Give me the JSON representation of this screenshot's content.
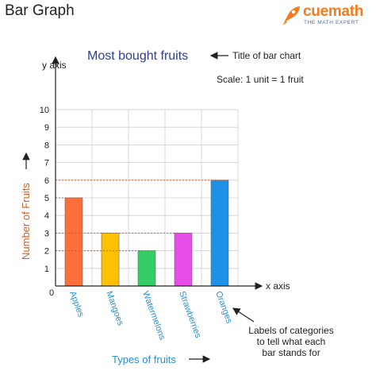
{
  "header": {
    "title": "Bar Graph",
    "brand_name": "cuemath",
    "brand_tagline": "THE MATH EXPERT"
  },
  "chart_data": {
    "type": "bar",
    "title": "Most bought fruits",
    "subtitle": "Scale: 1 unit = 1 fruit",
    "xlabel": "Types of fruits",
    "ylabel": "Number of Fruits",
    "x_axis_name": "x axis",
    "y_axis_name": "y axis",
    "origin_label": "0",
    "categories": [
      "Apples",
      "Mangoes",
      "Watermelons",
      "Strawberries",
      "Oranges"
    ],
    "values": [
      5,
      3,
      2,
      3,
      6
    ],
    "colors": [
      "#ff6f3c",
      "#ffc000",
      "#33cc66",
      "#e64ce6",
      "#1e90e6"
    ],
    "ylim": [
      0,
      10
    ],
    "yticks": [
      1,
      2,
      3,
      4,
      5,
      6,
      7,
      8,
      9,
      10
    ],
    "grid": true,
    "annotations": {
      "title_note": "Title of bar chart",
      "labels_note": [
        "Labels of categories",
        "to tell what each",
        "bar stands for"
      ]
    }
  }
}
